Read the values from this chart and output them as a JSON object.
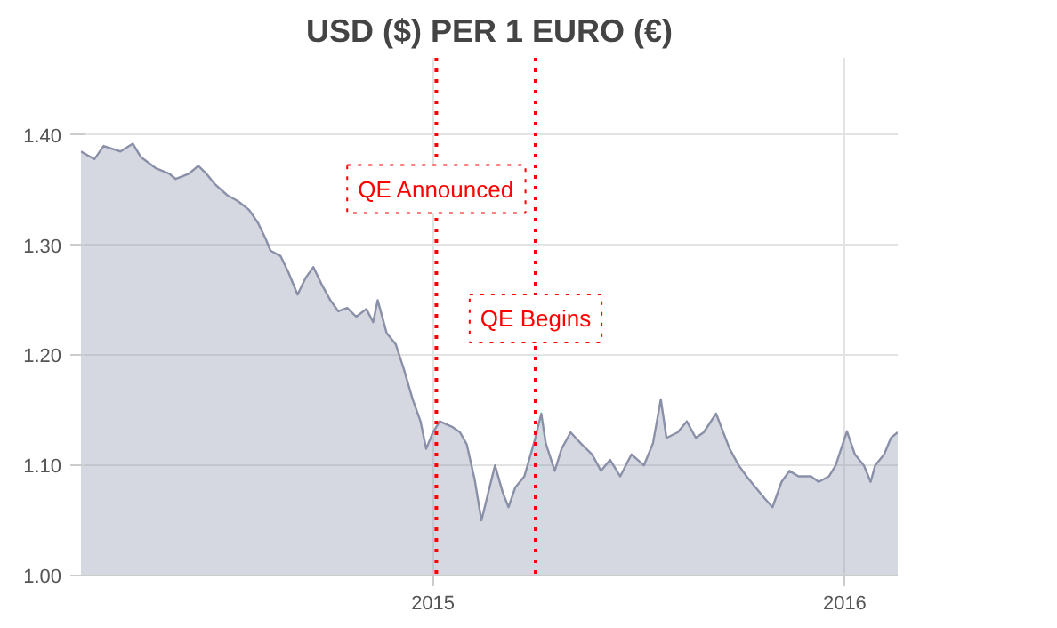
{
  "chart_data": {
    "type": "area",
    "title": "USD ($) PER 1 EURO (€)",
    "x": [
      "2014-02-23",
      "2014-03-07",
      "2014-03-15",
      "2014-03-30",
      "2014-04-10",
      "2014-04-17",
      "2014-04-30",
      "2014-05-12",
      "2014-05-18",
      "2014-05-30",
      "2014-06-07",
      "2014-06-14",
      "2014-06-22",
      "2014-07-03",
      "2014-07-12",
      "2014-07-22",
      "2014-07-30",
      "2014-08-06",
      "2014-08-10",
      "2014-08-19",
      "2014-08-26",
      "2014-09-03",
      "2014-09-10",
      "2014-09-17",
      "2014-09-24",
      "2014-10-02",
      "2014-10-09",
      "2014-10-17",
      "2014-10-25",
      "2014-11-03",
      "2014-11-09",
      "2014-11-13",
      "2014-11-21",
      "2014-11-29",
      "2014-12-06",
      "2014-12-14",
      "2014-12-21",
      "2014-12-26",
      "2015-01-01",
      "2015-01-07",
      "2015-01-18",
      "2015-01-25",
      "2015-01-31",
      "2015-02-07",
      "2015-02-13",
      "2015-02-19",
      "2015-02-25",
      "2015-03-04",
      "2015-03-09",
      "2015-03-15",
      "2015-03-23",
      "2015-04-01",
      "2015-04-07",
      "2015-04-11",
      "2015-04-19",
      "2015-04-25",
      "2015-05-03",
      "2015-05-12",
      "2015-05-22",
      "2015-05-30",
      "2015-06-07",
      "2015-06-16",
      "2015-06-26",
      "2015-07-07",
      "2015-07-15",
      "2015-07-22",
      "2015-07-27",
      "2015-08-06",
      "2015-08-14",
      "2015-08-22",
      "2015-08-29",
      "2015-09-09",
      "2015-09-21",
      "2015-09-29",
      "2015-10-06",
      "2015-10-14",
      "2015-10-22",
      "2015-10-29",
      "2015-11-06",
      "2015-11-13",
      "2015-11-21",
      "2015-12-02",
      "2015-12-09",
      "2015-12-18",
      "2015-12-24",
      "2016-01-03",
      "2016-01-10",
      "2016-01-18",
      "2016-01-24",
      "2016-01-28",
      "2016-02-05",
      "2016-02-11",
      "2016-02-17"
    ],
    "series": [
      {
        "color": "#8a90a8",
        "values": [
          1.385,
          1.378,
          1.39,
          1.385,
          1.392,
          1.38,
          1.37,
          1.365,
          1.36,
          1.365,
          1.372,
          1.365,
          1.355,
          1.345,
          1.34,
          1.332,
          1.32,
          1.305,
          1.295,
          1.29,
          1.275,
          1.255,
          1.27,
          1.28,
          1.265,
          1.25,
          1.24,
          1.243,
          1.235,
          1.242,
          1.23,
          1.25,
          1.22,
          1.21,
          1.188,
          1.16,
          1.14,
          1.115,
          1.13,
          1.14,
          1.135,
          1.13,
          1.119,
          1.087,
          1.05,
          1.075,
          1.1,
          1.075,
          1.062,
          1.08,
          1.09,
          1.122,
          1.147,
          1.12,
          1.095,
          1.115,
          1.13,
          1.12,
          1.11,
          1.095,
          1.105,
          1.09,
          1.11,
          1.1,
          1.12,
          1.16,
          1.125,
          1.13,
          1.14,
          1.125,
          1.13,
          1.147,
          1.115,
          1.1,
          1.09,
          1.08,
          1.07,
          1.062,
          1.085,
          1.095,
          1.09,
          1.09,
          1.085,
          1.09,
          1.1,
          1.131,
          1.11,
          1.1,
          1.085,
          1.1,
          1.11,
          1.125,
          1.13
        ]
      }
    ],
    "xlim": [
      "2014-02-23",
      "2016-02-17"
    ],
    "xticks": [
      {
        "value": "2015-01-01",
        "label": "2015"
      },
      {
        "value": "2016-01-01",
        "label": "2016"
      }
    ],
    "ylim": [
      1.0,
      1.47
    ],
    "yticks": [
      {
        "value": 1.0,
        "label": "1.00"
      },
      {
        "value": 1.1,
        "label": "1.10"
      },
      {
        "value": 1.2,
        "label": "1.20"
      },
      {
        "value": 1.3,
        "label": "1.30"
      },
      {
        "value": 1.4,
        "label": "1.40"
      }
    ],
    "ref_lines": [
      {
        "axis": "x",
        "value": "2015-01-04",
        "label": "QE Announced",
        "color": "#ff0000",
        "line_style": "dotted"
      },
      {
        "axis": "x",
        "value": "2015-04-02",
        "label": "QE Begins",
        "color": "#ff0000",
        "line_style": "dotted"
      }
    ],
    "grid": true
  }
}
